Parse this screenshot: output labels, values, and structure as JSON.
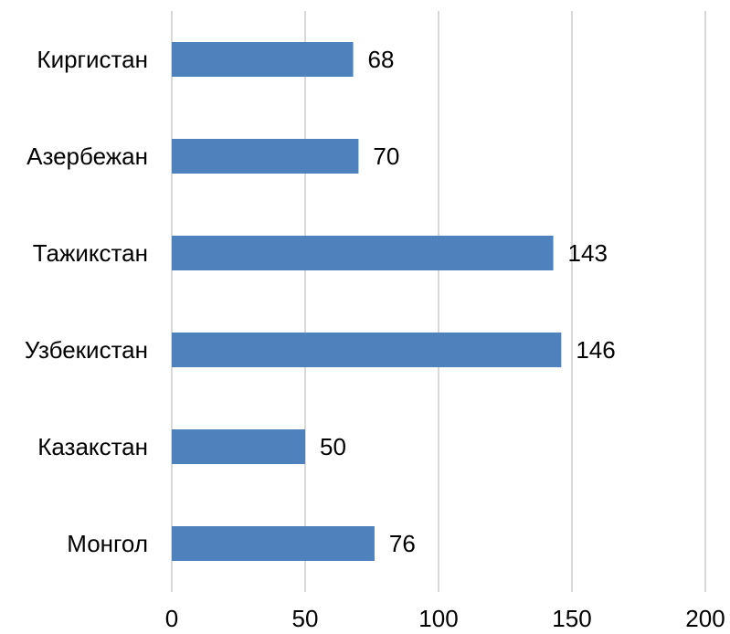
{
  "chart_data": {
    "type": "bar",
    "orientation": "horizontal",
    "title": "",
    "xlabel": "",
    "ylabel": "",
    "categories": [
      "Киргистан",
      "Азербежан",
      "Тажикстан",
      "Узбекистан",
      "Казакстан",
      "Монгол"
    ],
    "values": [
      68,
      70,
      143,
      146,
      50,
      76
    ],
    "xlim": [
      0,
      200
    ],
    "x_ticks": [
      "0",
      "50",
      "100",
      "150",
      "200"
    ],
    "grid": true,
    "legend": false,
    "bar_color": "#4f81bd",
    "grid_color": "#d9d9d9"
  }
}
